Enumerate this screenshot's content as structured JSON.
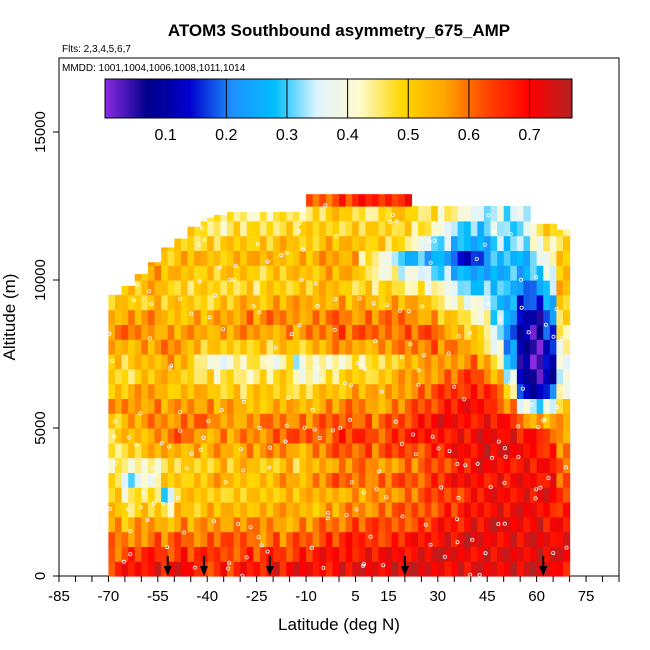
{
  "chart_data": {
    "type": "heatmap",
    "title": "ATOM3 Southbound asymmetry_675_AMP",
    "flights_note": "Flts: 2,3,4,5,6,7",
    "dates_note": "MMDD: 1001,1004,1006,1008,1011,1014",
    "xlabel": "Latitude (deg N)",
    "ylabel": "Altitude (m)",
    "xlim": [
      -85,
      85
    ],
    "ylim": [
      0,
      17500
    ],
    "x_tick_labels": [
      "-85",
      "-70",
      "-55",
      "-40",
      "-25",
      "-10",
      "5",
      "15",
      "30",
      "45",
      "60",
      "75"
    ],
    "x_tick_values": [
      -85,
      -70,
      -55,
      -40,
      -25,
      -10,
      5,
      15,
      30,
      45,
      60,
      75
    ],
    "x_minor_ticks": [
      -85,
      -80,
      -75,
      -70,
      -65,
      -60,
      -55,
      -50,
      -45,
      -40,
      -35,
      -30,
      -25,
      -20,
      -15,
      -10,
      -5,
      0,
      5,
      10,
      15,
      20,
      25,
      30,
      35,
      40,
      45,
      50,
      55,
      60,
      65,
      70,
      75,
      80,
      85
    ],
    "y_tick_labels": [
      "0",
      "5000",
      "10000",
      "15000"
    ],
    "y_tick_values": [
      0,
      5000,
      10000,
      15000
    ],
    "colorbar": {
      "range": [
        0.0,
        0.77
      ],
      "tick_labels": [
        "0.1",
        "0.2",
        "0.3",
        "0.4",
        "0.5",
        "0.6",
        "0.7"
      ],
      "tick_values": [
        0.1,
        0.2,
        0.3,
        0.4,
        0.5,
        0.6,
        0.7
      ],
      "colors": [
        "#8a2be2",
        "#00008b",
        "#0000cd",
        "#1e90ff",
        "#00bfff",
        "#e0f4ff",
        "#fffacd",
        "#ffd700",
        "#ffa500",
        "#ff4500",
        "#ff0000",
        "#b22222"
      ]
    },
    "arrow_latitudes": [
      -52,
      -41,
      -21,
      20,
      62
    ],
    "columns": [
      {
        "lat": -68,
        "top": 9500,
        "profile": [
          0.66,
          0.62,
          0.58,
          0.55,
          0.52,
          0.5,
          0.48,
          0.45,
          0.47,
          0.5,
          0.52,
          0.55,
          0.5,
          0.48,
          0.52,
          0.55,
          0.58,
          0.55,
          0.52
        ]
      },
      {
        "lat": -64,
        "top": 9800,
        "profile": [
          0.68,
          0.65,
          0.58,
          0.52,
          0.48,
          0.45,
          0.35,
          0.4,
          0.48,
          0.52,
          0.55,
          0.58,
          0.52,
          0.48,
          0.5,
          0.55,
          0.58,
          0.55,
          0.5,
          0.52
        ]
      },
      {
        "lat": -60,
        "top": 10200,
        "profile": [
          0.7,
          0.66,
          0.6,
          0.55,
          0.5,
          0.45,
          0.38,
          0.42,
          0.5,
          0.54,
          0.56,
          0.58,
          0.54,
          0.5,
          0.52,
          0.56,
          0.58,
          0.55,
          0.5,
          0.52,
          0.55
        ]
      },
      {
        "lat": -56,
        "top": 10600,
        "profile": [
          0.7,
          0.66,
          0.62,
          0.56,
          0.5,
          0.48,
          0.42,
          0.45,
          0.52,
          0.55,
          0.58,
          0.58,
          0.56,
          0.52,
          0.54,
          0.56,
          0.58,
          0.56,
          0.52,
          0.54,
          0.56,
          0.55
        ]
      },
      {
        "lat": -52,
        "top": 11100,
        "profile": [
          0.68,
          0.64,
          0.6,
          0.55,
          0.42,
          0.3,
          0.5,
          0.48,
          0.55,
          0.58,
          0.58,
          0.56,
          0.54,
          0.52,
          0.55,
          0.58,
          0.56,
          0.52,
          0.5,
          0.52,
          0.54,
          0.52,
          0.5
        ]
      },
      {
        "lat": -48,
        "top": 11400,
        "profile": [
          0.7,
          0.66,
          0.62,
          0.58,
          0.54,
          0.5,
          0.52,
          0.5,
          0.56,
          0.6,
          0.58,
          0.56,
          0.52,
          0.5,
          0.54,
          0.58,
          0.56,
          0.54,
          0.5,
          0.48,
          0.52,
          0.54,
          0.5,
          0.48
        ]
      },
      {
        "lat": -44,
        "top": 11800,
        "profile": [
          0.68,
          0.64,
          0.6,
          0.56,
          0.52,
          0.5,
          0.5,
          0.48,
          0.55,
          0.58,
          0.6,
          0.58,
          0.55,
          0.5,
          0.45,
          0.52,
          0.56,
          0.55,
          0.5,
          0.48,
          0.52,
          0.55,
          0.5,
          0.48,
          0.46
        ]
      },
      {
        "lat": -40,
        "top": 12100,
        "profile": [
          0.66,
          0.64,
          0.6,
          0.56,
          0.54,
          0.5,
          0.52,
          0.5,
          0.54,
          0.56,
          0.58,
          0.56,
          0.52,
          0.48,
          0.42,
          0.5,
          0.55,
          0.54,
          0.5,
          0.48,
          0.5,
          0.52,
          0.5,
          0.46,
          0.44
        ]
      },
      {
        "lat": -36,
        "top": 12200,
        "profile": [
          0.68,
          0.64,
          0.62,
          0.58,
          0.54,
          0.52,
          0.54,
          0.52,
          0.56,
          0.58,
          0.56,
          0.54,
          0.5,
          0.46,
          0.4,
          0.48,
          0.54,
          0.55,
          0.52,
          0.48,
          0.5,
          0.52,
          0.5,
          0.46,
          0.44
        ]
      },
      {
        "lat": -32,
        "top": 12300,
        "profile": [
          0.66,
          0.64,
          0.6,
          0.56,
          0.52,
          0.5,
          0.52,
          0.5,
          0.54,
          0.56,
          0.58,
          0.54,
          0.5,
          0.46,
          0.42,
          0.5,
          0.55,
          0.56,
          0.52,
          0.5,
          0.5,
          0.52,
          0.5,
          0.48,
          0.46
        ]
      },
      {
        "lat": -28,
        "top": 12300,
        "profile": [
          0.68,
          0.66,
          0.62,
          0.58,
          0.54,
          0.52,
          0.54,
          0.52,
          0.56,
          0.58,
          0.56,
          0.52,
          0.48,
          0.44,
          0.46,
          0.52,
          0.56,
          0.58,
          0.54,
          0.5,
          0.52,
          0.54,
          0.52,
          0.48,
          0.46
        ]
      },
      {
        "lat": -24,
        "top": 12300,
        "profile": [
          0.68,
          0.64,
          0.6,
          0.56,
          0.52,
          0.5,
          0.52,
          0.5,
          0.55,
          0.58,
          0.6,
          0.54,
          0.5,
          0.46,
          0.44,
          0.52,
          0.56,
          0.56,
          0.52,
          0.48,
          0.5,
          0.52,
          0.5,
          0.46,
          0.44
        ]
      },
      {
        "lat": -20,
        "top": 12300,
        "profile": [
          0.7,
          0.66,
          0.62,
          0.58,
          0.54,
          0.52,
          0.54,
          0.52,
          0.56,
          0.6,
          0.58,
          0.54,
          0.5,
          0.46,
          0.4,
          0.5,
          0.56,
          0.58,
          0.54,
          0.5,
          0.52,
          0.54,
          0.5,
          0.48,
          0.46
        ]
      },
      {
        "lat": -16,
        "top": 12300,
        "profile": [
          0.68,
          0.64,
          0.6,
          0.56,
          0.54,
          0.52,
          0.56,
          0.54,
          0.58,
          0.62,
          0.6,
          0.56,
          0.52,
          0.48,
          0.44,
          0.52,
          0.58,
          0.58,
          0.54,
          0.5,
          0.52,
          0.54,
          0.52,
          0.48,
          0.46
        ]
      },
      {
        "lat": -12,
        "top": 12300,
        "profile": [
          0.7,
          0.66,
          0.62,
          0.58,
          0.54,
          0.52,
          0.54,
          0.5,
          0.55,
          0.6,
          0.58,
          0.52,
          0.48,
          0.4,
          0.36,
          0.5,
          0.56,
          0.58,
          0.54,
          0.5,
          0.52,
          0.54,
          0.5,
          0.48,
          0.46
        ]
      },
      {
        "lat": -8,
        "top": 12900,
        "profile": [
          0.7,
          0.66,
          0.62,
          0.58,
          0.54,
          0.52,
          0.56,
          0.52,
          0.58,
          0.62,
          0.58,
          0.54,
          0.5,
          0.44,
          0.4,
          0.52,
          0.58,
          0.58,
          0.54,
          0.5,
          0.52,
          0.54,
          0.52,
          0.48,
          0.46,
          0.6
        ]
      },
      {
        "lat": -4,
        "top": 12900,
        "profile": [
          0.7,
          0.68,
          0.64,
          0.6,
          0.56,
          0.54,
          0.58,
          0.56,
          0.6,
          0.62,
          0.6,
          0.56,
          0.52,
          0.46,
          0.42,
          0.54,
          0.6,
          0.6,
          0.56,
          0.52,
          0.54,
          0.56,
          0.54,
          0.5,
          0.48,
          0.62
        ]
      },
      {
        "lat": 0,
        "top": 12900,
        "profile": [
          0.72,
          0.68,
          0.64,
          0.6,
          0.56,
          0.56,
          0.6,
          0.56,
          0.62,
          0.66,
          0.62,
          0.56,
          0.52,
          0.48,
          0.44,
          0.56,
          0.62,
          0.6,
          0.56,
          0.52,
          0.54,
          0.56,
          0.54,
          0.5,
          0.5,
          0.64
        ]
      },
      {
        "lat": 4,
        "top": 12900,
        "profile": [
          0.72,
          0.7,
          0.66,
          0.62,
          0.58,
          0.56,
          0.6,
          0.58,
          0.62,
          0.66,
          0.64,
          0.58,
          0.54,
          0.5,
          0.46,
          0.56,
          0.6,
          0.58,
          0.54,
          0.5,
          0.52,
          0.54,
          0.52,
          0.5,
          0.48,
          0.64
        ]
      },
      {
        "lat": 8,
        "top": 12900,
        "profile": [
          0.72,
          0.7,
          0.66,
          0.62,
          0.58,
          0.56,
          0.62,
          0.58,
          0.62,
          0.64,
          0.62,
          0.58,
          0.54,
          0.5,
          0.46,
          0.56,
          0.6,
          0.58,
          0.54,
          0.5,
          0.48,
          0.46,
          0.52,
          0.5,
          0.48,
          0.66
        ]
      },
      {
        "lat": 12,
        "top": 12900,
        "profile": [
          0.72,
          0.7,
          0.66,
          0.62,
          0.58,
          0.56,
          0.6,
          0.56,
          0.6,
          0.62,
          0.6,
          0.56,
          0.52,
          0.48,
          0.46,
          0.56,
          0.6,
          0.58,
          0.52,
          0.48,
          0.44,
          0.4,
          0.5,
          0.48,
          0.46,
          0.66
        ]
      },
      {
        "lat": 16,
        "top": 12900,
        "profile": [
          0.72,
          0.7,
          0.66,
          0.62,
          0.6,
          0.58,
          0.62,
          0.58,
          0.62,
          0.64,
          0.62,
          0.58,
          0.56,
          0.52,
          0.5,
          0.58,
          0.62,
          0.58,
          0.54,
          0.48,
          0.42,
          0.36,
          0.48,
          0.5,
          0.52,
          0.68
        ]
      },
      {
        "lat": 20,
        "top": 12900,
        "profile": [
          0.72,
          0.7,
          0.68,
          0.64,
          0.6,
          0.58,
          0.62,
          0.6,
          0.64,
          0.66,
          0.64,
          0.6,
          0.58,
          0.54,
          0.52,
          0.58,
          0.62,
          0.6,
          0.54,
          0.46,
          0.38,
          0.3,
          0.44,
          0.48,
          0.5,
          0.68
        ]
      },
      {
        "lat": 24,
        "top": 12500,
        "profile": [
          0.72,
          0.7,
          0.68,
          0.64,
          0.62,
          0.6,
          0.62,
          0.6,
          0.64,
          0.66,
          0.66,
          0.62,
          0.6,
          0.56,
          0.54,
          0.6,
          0.62,
          0.58,
          0.52,
          0.44,
          0.36,
          0.28,
          0.4,
          0.46,
          0.48
        ]
      },
      {
        "lat": 28,
        "top": 12500,
        "profile": [
          0.72,
          0.72,
          0.7,
          0.66,
          0.64,
          0.62,
          0.64,
          0.62,
          0.66,
          0.68,
          0.68,
          0.64,
          0.62,
          0.58,
          0.54,
          0.6,
          0.62,
          0.56,
          0.5,
          0.42,
          0.34,
          0.26,
          0.36,
          0.42,
          0.46
        ]
      },
      {
        "lat": 32,
        "top": 12500,
        "profile": [
          0.72,
          0.72,
          0.7,
          0.68,
          0.66,
          0.64,
          0.66,
          0.64,
          0.68,
          0.7,
          0.7,
          0.66,
          0.64,
          0.6,
          0.56,
          0.58,
          0.58,
          0.52,
          0.46,
          0.38,
          0.3,
          0.24,
          0.32,
          0.38,
          0.44
        ]
      },
      {
        "lat": 36,
        "top": 12500,
        "profile": [
          0.72,
          0.72,
          0.7,
          0.68,
          0.66,
          0.66,
          0.68,
          0.66,
          0.7,
          0.7,
          0.7,
          0.68,
          0.66,
          0.62,
          0.58,
          0.56,
          0.52,
          0.48,
          0.42,
          0.34,
          0.26,
          0.18,
          0.28,
          0.34,
          0.4
        ]
      },
      {
        "lat": 40,
        "top": 12500,
        "profile": [
          0.72,
          0.72,
          0.72,
          0.7,
          0.68,
          0.68,
          0.7,
          0.68,
          0.7,
          0.7,
          0.7,
          0.68,
          0.66,
          0.64,
          0.6,
          0.54,
          0.5,
          0.46,
          0.4,
          0.32,
          0.22,
          0.12,
          0.24,
          0.3,
          0.38
        ]
      },
      {
        "lat": 44,
        "top": 12500,
        "profile": [
          0.72,
          0.72,
          0.72,
          0.7,
          0.7,
          0.7,
          0.7,
          0.7,
          0.72,
          0.72,
          0.7,
          0.68,
          0.66,
          0.62,
          0.56,
          0.5,
          0.44,
          0.4,
          0.36,
          0.3,
          0.24,
          0.2,
          0.26,
          0.3,
          0.36
        ]
      },
      {
        "lat": 48,
        "top": 12500,
        "profile": [
          0.72,
          0.72,
          0.72,
          0.72,
          0.7,
          0.7,
          0.7,
          0.7,
          0.72,
          0.72,
          0.7,
          0.66,
          0.6,
          0.52,
          0.44,
          0.38,
          0.34,
          0.32,
          0.3,
          0.3,
          0.28,
          0.26,
          0.3,
          0.34,
          0.36
        ]
      },
      {
        "lat": 52,
        "top": 12500,
        "profile": [
          0.72,
          0.72,
          0.72,
          0.72,
          0.7,
          0.7,
          0.7,
          0.7,
          0.7,
          0.7,
          0.66,
          0.58,
          0.46,
          0.36,
          0.28,
          0.24,
          0.22,
          0.22,
          0.24,
          0.26,
          0.28,
          0.28,
          0.3,
          0.32,
          0.34
        ]
      },
      {
        "lat": 56,
        "top": 12500,
        "profile": [
          0.72,
          0.72,
          0.72,
          0.72,
          0.7,
          0.7,
          0.7,
          0.7,
          0.7,
          0.68,
          0.6,
          0.4,
          0.18,
          0.08,
          0.06,
          0.08,
          0.1,
          0.12,
          0.16,
          0.22,
          0.26,
          0.28,
          0.3,
          0.32,
          0.34
        ]
      },
      {
        "lat": 60,
        "top": 11900,
        "profile": [
          0.72,
          0.72,
          0.72,
          0.72,
          0.7,
          0.7,
          0.7,
          0.7,
          0.7,
          0.66,
          0.54,
          0.3,
          0.1,
          0.04,
          0.02,
          0.04,
          0.06,
          0.1,
          0.14,
          0.2,
          0.28,
          0.34,
          0.4,
          0.44
        ]
      },
      {
        "lat": 64,
        "top": 11900,
        "profile": [
          0.72,
          0.72,
          0.72,
          0.7,
          0.7,
          0.7,
          0.68,
          0.68,
          0.66,
          0.62,
          0.54,
          0.38,
          0.2,
          0.12,
          0.1,
          0.12,
          0.16,
          0.2,
          0.26,
          0.32,
          0.38,
          0.42,
          0.46,
          0.48
        ]
      },
      {
        "lat": 68,
        "top": 11700,
        "profile": [
          0.7,
          0.7,
          0.7,
          0.68,
          0.66,
          0.64,
          0.62,
          0.62,
          0.6,
          0.58,
          0.54,
          0.48,
          0.4,
          0.36,
          0.38,
          0.42,
          0.46,
          0.5,
          0.52,
          0.52,
          0.5,
          0.5,
          0.48,
          0.46
        ]
      }
    ]
  }
}
